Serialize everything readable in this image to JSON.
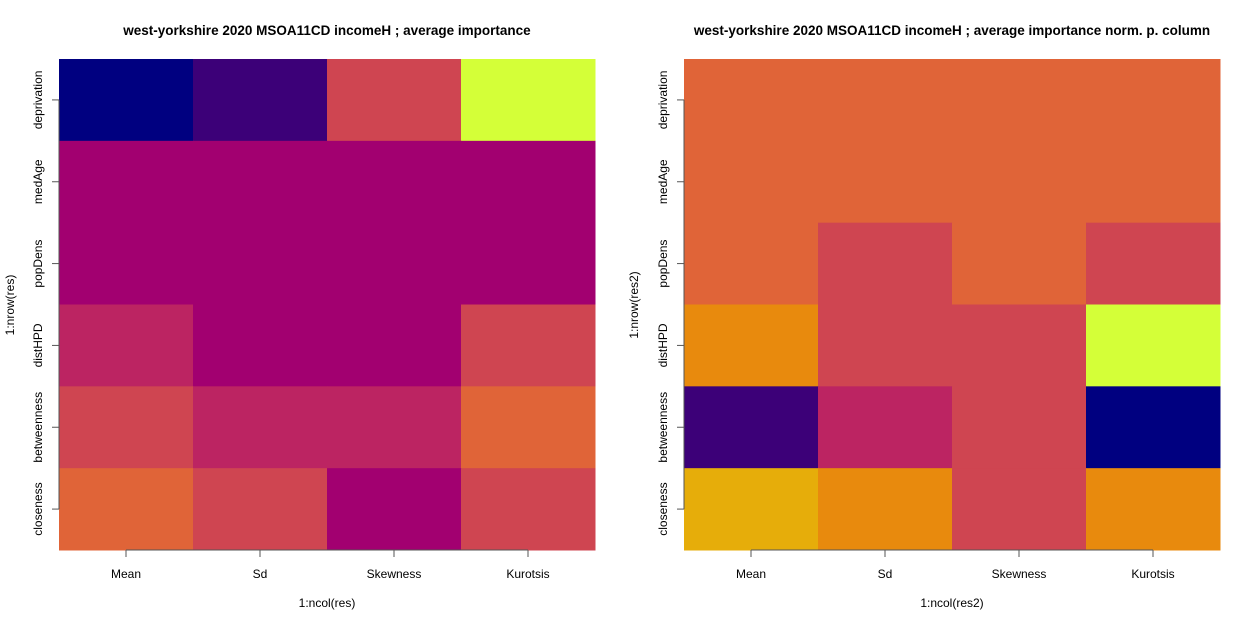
{
  "chart_data": [
    {
      "type": "heatmap",
      "title": "west-yorkshire 2020 MSOA11CD incomeH ; average importance",
      "xlabel": "1:ncol(res)",
      "ylabel": "1:nrow(res)",
      "x_categories": [
        "Mean",
        "Sd",
        "Skewness",
        "Kurotsis"
      ],
      "y_categories": [
        "deprivation",
        "medAge",
        "popDens",
        "distHPD",
        "betweenness",
        "closeness"
      ],
      "palette": [
        "#000080",
        "#3c0078",
        "#a20070",
        "#bc2462",
        "#cf4551",
        "#e06438",
        "#e88a0d",
        "#e6ad0a",
        "#d4ff38"
      ],
      "values": [
        [
          0,
          1,
          4,
          8
        ],
        [
          2,
          2,
          2,
          2
        ],
        [
          2,
          2,
          2,
          2
        ],
        [
          3,
          2,
          2,
          4
        ],
        [
          4,
          3,
          3,
          5
        ],
        [
          5,
          4,
          2,
          4
        ]
      ]
    },
    {
      "type": "heatmap",
      "title": "west-yorkshire 2020 MSOA11CD incomeH ; average importance norm. p. column",
      "xlabel": "1:ncol(res2)",
      "ylabel": "1:nrow(res2)",
      "x_categories": [
        "Mean",
        "Sd",
        "Skewness",
        "Kurotsis"
      ],
      "y_categories": [
        "deprivation",
        "medAge",
        "popDens",
        "distHPD",
        "betweenness",
        "closeness"
      ],
      "palette": [
        "#000080",
        "#3c0078",
        "#a20070",
        "#bc2462",
        "#cf4551",
        "#e06438",
        "#e88a0d",
        "#e6ad0a",
        "#d4ff38"
      ],
      "values": [
        [
          5,
          5,
          5,
          5
        ],
        [
          5,
          5,
          5,
          5
        ],
        [
          5,
          4,
          5,
          4
        ],
        [
          6,
          4,
          4,
          8
        ],
        [
          1,
          3,
          4,
          0
        ],
        [
          7,
          6,
          4,
          6
        ]
      ]
    }
  ]
}
